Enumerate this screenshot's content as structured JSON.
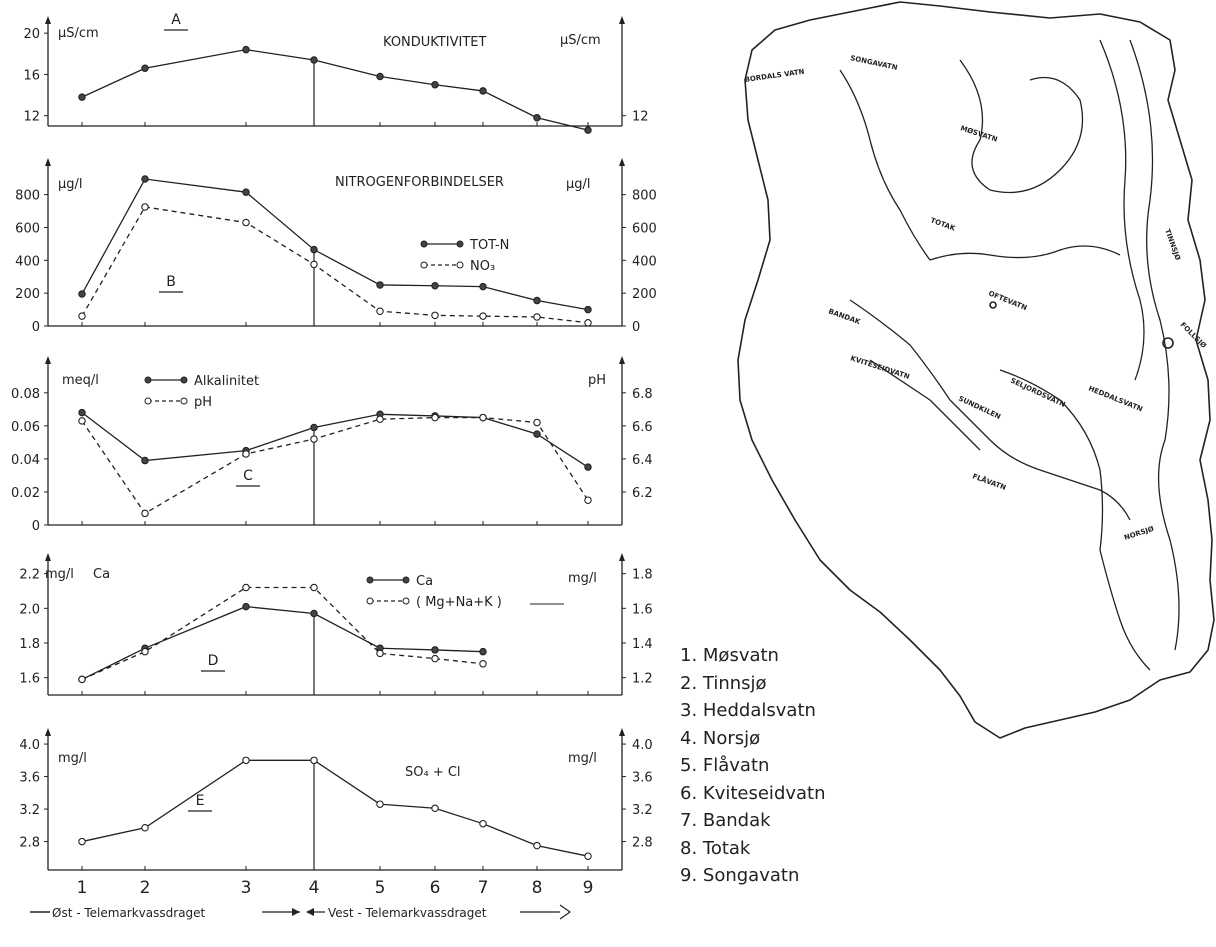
{
  "chart_data": [
    {
      "type": "line",
      "panel_letter": "A",
      "title": "KONDUKTIVITET",
      "ylabel_left": "µS/cm",
      "ylabel_right": "µS/cm",
      "yticks_left": [
        "12",
        "16",
        "20"
      ],
      "yticks_right": [
        "12"
      ],
      "ylim": [
        11,
        20.5
      ],
      "x": [
        1,
        2,
        3,
        4,
        5,
        6,
        7,
        8,
        9
      ],
      "series": [
        {
          "values": [
            13.8,
            16.6,
            18.4,
            17.4,
            15.8,
            15.0,
            14.4,
            11.8,
            10.6
          ],
          "style": "solid",
          "marker": "filled"
        }
      ]
    },
    {
      "type": "line",
      "panel_letter": "B",
      "title": "NITROGENFORBINDELSER",
      "ylabel_left": "µg/l",
      "ylabel_right": "µg/l",
      "yticks_left": [
        "0",
        "200",
        "400",
        "600",
        "800"
      ],
      "yticks_right": [
        "0",
        "200",
        "400",
        "600",
        "800"
      ],
      "ylim": [
        0,
        950
      ],
      "x": [
        1,
        2,
        3,
        4,
        5,
        6,
        7,
        8,
        9
      ],
      "legend": [
        "TOT-N",
        "NO₃"
      ],
      "series": [
        {
          "name": "TOT-N",
          "values": [
            195,
            895,
            815,
            465,
            250,
            245,
            240,
            155,
            100
          ],
          "style": "solid",
          "marker": "filled"
        },
        {
          "name": "NO₃",
          "values": [
            60,
            725,
            630,
            375,
            90,
            65,
            60,
            55,
            20
          ],
          "style": "dashed",
          "marker": "open"
        }
      ]
    },
    {
      "type": "line",
      "panel_letter": "C",
      "title": "",
      "ylabel_left": "meq/l",
      "ylabel_right": "pH",
      "yticks_left": [
        "0",
        "0.02",
        "0.04",
        "0.06",
        "0.08"
      ],
      "yticks_right": [
        "6.2",
        "6.4",
        "6.6",
        "6.8"
      ],
      "ylim": [
        0,
        0.095
      ],
      "ylim_right": [
        6.0,
        6.95
      ],
      "x": [
        1,
        2,
        3,
        4,
        5,
        6,
        7,
        8,
        9
      ],
      "legend": [
        "Alkalinitet",
        "pH"
      ],
      "series": [
        {
          "name": "Alkalinitet",
          "axis": "left",
          "values": [
            0.068,
            0.039,
            0.045,
            0.059,
            0.067,
            0.066,
            0.065,
            0.055,
            0.035
          ],
          "style": "solid",
          "marker": "filled"
        },
        {
          "name": "pH",
          "axis": "right",
          "values": [
            6.63,
            6.07,
            6.43,
            6.52,
            6.64,
            6.65,
            6.65,
            6.62,
            6.15
          ],
          "style": "dashed",
          "marker": "open"
        }
      ]
    },
    {
      "type": "line",
      "panel_letter": "D",
      "title": "",
      "ylabel_left": "mg/l",
      "ylabel_left_extra": "Ca",
      "ylabel_right": "mg/l",
      "yticks_left": [
        "1.6",
        "1.8",
        "2.0",
        "2.2"
      ],
      "yticks_right": [
        "1.2",
        "1.4",
        "1.6",
        "1.8"
      ],
      "ylim": [
        1.5,
        2.25
      ],
      "ylim_right": [
        1.1,
        1.85
      ],
      "x_solid": [
        1,
        2,
        3,
        4,
        5,
        6,
        7
      ],
      "x_dashed": [
        1,
        2,
        3,
        4,
        5,
        6,
        7
      ],
      "legend": [
        "Ca",
        "( Mg+Na+K )"
      ],
      "series": [
        {
          "name": "Ca",
          "axis": "left",
          "values": [
            1.59,
            1.77,
            2.01,
            1.97,
            1.77,
            1.76,
            1.75
          ],
          "style": "solid",
          "marker": "filled"
        },
        {
          "name": "( Mg+Na+K )",
          "axis": "right",
          "values": [
            1.19,
            1.35,
            1.72,
            1.72,
            1.34,
            1.31,
            1.28
          ],
          "style": "dashed",
          "marker": "open"
        }
      ]
    },
    {
      "type": "line",
      "panel_letter": "E",
      "title": "SO₄ + Cl",
      "ylabel_left": "mg/l",
      "ylabel_right": "mg/l",
      "yticks_left": [
        "2.8",
        "3.2",
        "3.6",
        "4.0"
      ],
      "yticks_right": [
        "2.8",
        "3.2",
        "3.6",
        "4.0"
      ],
      "ylim": [
        2.45,
        4.05
      ],
      "x": [
        1,
        2,
        3,
        4,
        5,
        6,
        7,
        8,
        9
      ],
      "series": [
        {
          "values": [
            2.8,
            2.97,
            3.8,
            3.8,
            3.26,
            3.21,
            3.02,
            2.75,
            2.62
          ],
          "style": "solid",
          "marker": "open"
        }
      ]
    }
  ],
  "x_ticks": [
    "1",
    "2",
    "3",
    "4",
    "5",
    "6",
    "7",
    "8",
    "9"
  ],
  "footer": {
    "left": "Øst - Telemarkvassdraget",
    "right": "Vest - Telemarkvassdraget"
  },
  "lakes": [
    "1. Møsvatn",
    "2. Tinnsjø",
    "3. Heddalsvatn",
    "4. Norsjø",
    "5. Flåvatn",
    "6. Kviteseidvatn",
    "7. Bandak",
    "8. Totak",
    "9. Songavatn"
  ],
  "map_labels": [
    "BORDALS VATN",
    "SONGAVATN",
    "MØSVATN",
    "TOTAK",
    "TINNSJØ",
    "OFTEVATN",
    "BANDAK",
    "FOLLSJØ",
    "KVITESEIDVATN",
    "SUNDKILEN",
    "SELJORDSVATN",
    "HEDDALSVATN",
    "FLÅVATN",
    "NORSJØ"
  ]
}
